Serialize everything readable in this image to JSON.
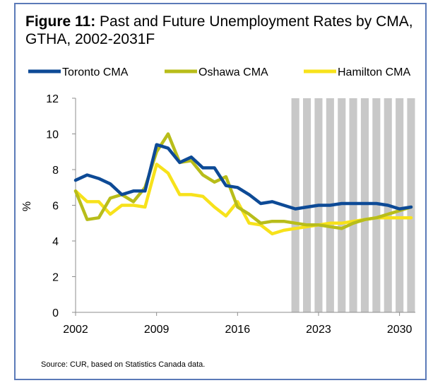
{
  "figure": {
    "label": "Figure 11:",
    "title": "Past and Future Unemployment Rates by CMA, GTHA, 2002-2031F",
    "source": "Source: CUR, based on Statistics Canada data."
  },
  "colors": {
    "toronto": "#0d4a96",
    "oshawa": "#b8bd1a",
    "hamilton": "#f7e21b",
    "forecast_band": "#c8c8c8",
    "axis": "#8c8c8c"
  },
  "chart_data": {
    "type": "line",
    "title": "Past and Future Unemployment Rates by CMA, GTHA, 2002-2031F",
    "xlabel": "",
    "ylabel": "%",
    "xlim": [
      2002,
      2031
    ],
    "ylim": [
      0,
      12
    ],
    "x_ticks": [
      2002,
      2009,
      2016,
      2023,
      2030
    ],
    "y_ticks": [
      0,
      2,
      4,
      6,
      8,
      10,
      12
    ],
    "grid": false,
    "legend_position": "top",
    "forecast_start": 2021,
    "x": [
      2002,
      2003,
      2004,
      2005,
      2006,
      2007,
      2008,
      2009,
      2010,
      2011,
      2012,
      2013,
      2014,
      2015,
      2016,
      2017,
      2018,
      2019,
      2020,
      2021,
      2022,
      2023,
      2024,
      2025,
      2026,
      2027,
      2028,
      2029,
      2030,
      2031
    ],
    "series": [
      {
        "name": "Toronto CMA",
        "color": "#0d4a96",
        "values": [
          7.4,
          7.7,
          7.5,
          7.2,
          6.6,
          6.8,
          6.8,
          9.4,
          9.2,
          8.4,
          8.7,
          8.1,
          8.1,
          7.1,
          7.0,
          6.6,
          6.1,
          6.2,
          6.0,
          5.8,
          5.9,
          6.0,
          6.0,
          6.1,
          6.1,
          6.1,
          6.1,
          6.0,
          5.8,
          5.9
        ]
      },
      {
        "name": "Oshawa CMA",
        "color": "#b8bd1a",
        "values": [
          6.8,
          5.2,
          5.3,
          6.4,
          6.6,
          6.2,
          7.0,
          9.0,
          10.0,
          8.4,
          8.5,
          7.7,
          7.3,
          7.6,
          5.9,
          5.5,
          5.0,
          5.1,
          5.1,
          5.0,
          4.9,
          4.9,
          4.8,
          4.7,
          5.0,
          5.2,
          5.3,
          5.5,
          5.7,
          5.9
        ]
      },
      {
        "name": "Hamilton CMA",
        "color": "#f7e21b",
        "values": [
          6.8,
          6.2,
          6.2,
          5.5,
          6.0,
          6.0,
          5.9,
          8.3,
          7.8,
          6.6,
          6.6,
          6.5,
          5.9,
          5.4,
          6.2,
          5.0,
          4.9,
          4.4,
          4.6,
          4.7,
          4.8,
          4.9,
          5.0,
          5.0,
          5.1,
          5.2,
          5.3,
          5.3,
          5.3,
          5.3
        ]
      }
    ]
  }
}
